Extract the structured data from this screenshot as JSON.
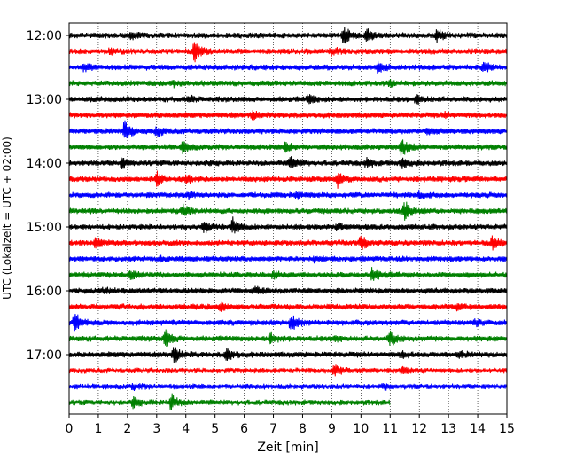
{
  "chart_data": {
    "type": "line",
    "plot_kind": "helicorder",
    "xlabel": "Zeit  [min]",
    "ylabel": "UTC (Lokalzeit = UTC + 02:00)",
    "xlim": [
      0,
      15
    ],
    "x_ticks": [
      "0",
      "1",
      "2",
      "3",
      "4",
      "5",
      "6",
      "7",
      "8",
      "9",
      "10",
      "11",
      "12",
      "13",
      "14",
      "15"
    ],
    "y_ticks": [
      {
        "label": "12:00",
        "row": 0
      },
      {
        "label": "13:00",
        "row": 4
      },
      {
        "label": "14:00",
        "row": 8
      },
      {
        "label": "15:00",
        "row": 12
      },
      {
        "label": "16:00",
        "row": 16
      },
      {
        "label": "17:00",
        "row": 20
      }
    ],
    "minutes_per_row": 15,
    "start_time": "12:00",
    "row_colors": [
      "#000000",
      "#ff0000",
      "#0000ff",
      "#008000"
    ],
    "vertical_grid": "dotted",
    "rows": [
      {
        "row": 0,
        "events": [
          [
            9.4,
            0.9
          ],
          [
            10.2,
            0.6
          ],
          [
            12.6,
            0.6
          ],
          [
            2.1,
            0.3
          ]
        ]
      },
      {
        "row": 1,
        "events": [
          [
            4.3,
            1.0
          ],
          [
            9.0,
            0.4
          ],
          [
            1.4,
            0.3
          ]
        ]
      },
      {
        "row": 2,
        "events": [
          [
            10.6,
            0.6
          ],
          [
            14.2,
            0.5
          ],
          [
            0.5,
            0.3
          ]
        ]
      },
      {
        "row": 3,
        "events": [
          [
            3.6,
            0.2
          ],
          [
            11.0,
            0.2
          ]
        ]
      },
      {
        "row": 4,
        "events": [
          [
            8.2,
            0.4
          ],
          [
            11.9,
            0.5
          ],
          [
            4.1,
            0.3
          ]
        ]
      },
      {
        "row": 5,
        "events": [
          [
            6.3,
            0.3
          ],
          [
            12.9,
            0.2
          ]
        ]
      },
      {
        "row": 6,
        "events": [
          [
            1.9,
            1.0
          ],
          [
            3.0,
            0.4
          ],
          [
            12.3,
            0.3
          ]
        ]
      },
      {
        "row": 7,
        "events": [
          [
            3.9,
            0.5
          ],
          [
            7.4,
            0.5
          ],
          [
            11.4,
            1.0
          ]
        ]
      },
      {
        "row": 8,
        "events": [
          [
            1.8,
            0.5
          ],
          [
            7.6,
            0.6
          ],
          [
            10.2,
            0.4
          ],
          [
            11.4,
            0.5
          ]
        ]
      },
      {
        "row": 9,
        "events": [
          [
            3.0,
            0.6
          ],
          [
            9.2,
            0.7
          ],
          [
            4.0,
            0.3
          ]
        ]
      },
      {
        "row": 10,
        "events": [
          [
            4.1,
            0.3
          ],
          [
            7.8,
            0.3
          ],
          [
            12.0,
            0.3
          ]
        ]
      },
      {
        "row": 11,
        "events": [
          [
            3.9,
            0.5
          ],
          [
            11.5,
            0.9
          ]
        ]
      },
      {
        "row": 12,
        "events": [
          [
            4.6,
            0.6
          ],
          [
            5.6,
            0.8
          ],
          [
            9.2,
            0.3
          ]
        ]
      },
      {
        "row": 13,
        "events": [
          [
            0.9,
            0.4
          ],
          [
            10.0,
            0.7
          ],
          [
            14.5,
            0.6
          ]
        ]
      },
      {
        "row": 14,
        "events": [
          [
            3.1,
            0.2
          ],
          [
            8.4,
            0.2
          ]
        ]
      },
      {
        "row": 15,
        "events": [
          [
            2.1,
            0.4
          ],
          [
            10.4,
            0.7
          ],
          [
            7.0,
            0.3
          ]
        ]
      },
      {
        "row": 16,
        "events": [
          [
            6.4,
            0.3
          ],
          [
            1.2,
            0.2
          ]
        ]
      },
      {
        "row": 17,
        "events": [
          [
            5.2,
            0.3
          ],
          [
            13.3,
            0.2
          ]
        ]
      },
      {
        "row": 18,
        "events": [
          [
            0.2,
            1.0
          ],
          [
            7.6,
            0.9
          ],
          [
            13.9,
            0.3
          ]
        ]
      },
      {
        "row": 19,
        "events": [
          [
            3.3,
            0.8
          ],
          [
            6.9,
            0.6
          ],
          [
            11.0,
            0.7
          ],
          [
            9.1,
            0.3
          ]
        ]
      },
      {
        "row": 20,
        "events": [
          [
            3.6,
            0.7
          ],
          [
            5.4,
            0.7
          ],
          [
            11.4,
            0.3
          ],
          [
            13.4,
            0.3
          ]
        ]
      },
      {
        "row": 21,
        "events": [
          [
            9.1,
            0.6
          ],
          [
            11.4,
            0.3
          ]
        ]
      },
      {
        "row": 22,
        "events": [
          [
            2.2,
            0.2
          ],
          [
            10.8,
            0.2
          ]
        ]
      },
      {
        "row": 23,
        "end_minute": 11.0,
        "events": [
          [
            2.2,
            0.4
          ],
          [
            3.5,
            0.8
          ]
        ]
      }
    ]
  }
}
